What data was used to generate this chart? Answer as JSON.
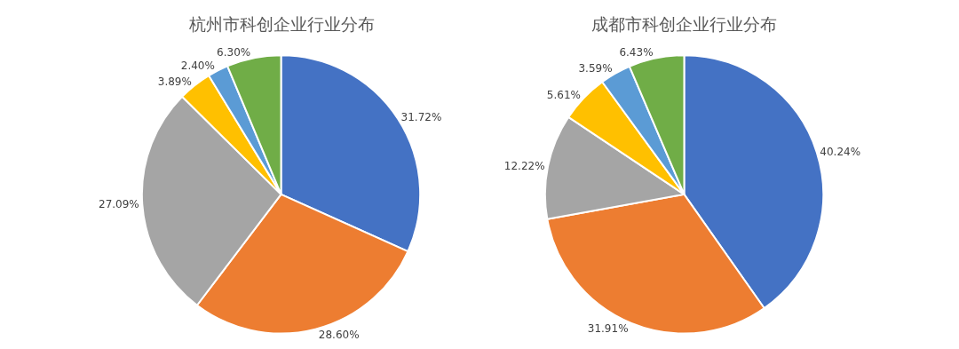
{
  "chart_data": [
    {
      "type": "pie",
      "title": "杭州市科创企业行业分布",
      "categories": [
        null,
        null,
        null,
        null,
        null,
        null
      ],
      "values": [
        31.72,
        28.6,
        27.09,
        3.89,
        2.4,
        6.3
      ],
      "value_labels": [
        "31.72%",
        "28.60%",
        "27.09%",
        "3.89%",
        "2.40%",
        "6.30%"
      ],
      "colors": [
        "#4472c4",
        "#ed7d31",
        "#a5a5a5",
        "#ffc000",
        "#5b9bd5",
        "#70ad47"
      ],
      "legend": false
    },
    {
      "type": "pie",
      "title": "成都市科创企业行业分布",
      "categories": [
        null,
        null,
        null,
        null,
        null,
        null
      ],
      "values": [
        40.24,
        31.91,
        12.22,
        5.61,
        3.59,
        6.43
      ],
      "value_labels": [
        "40.24%",
        "31.91%",
        "12.22%",
        "5.61%",
        "3.59%",
        "6.43%"
      ],
      "colors": [
        "#4472c4",
        "#ed7d31",
        "#a5a5a5",
        "#ffc000",
        "#5b9bd5",
        "#70ad47"
      ],
      "legend": false
    }
  ]
}
